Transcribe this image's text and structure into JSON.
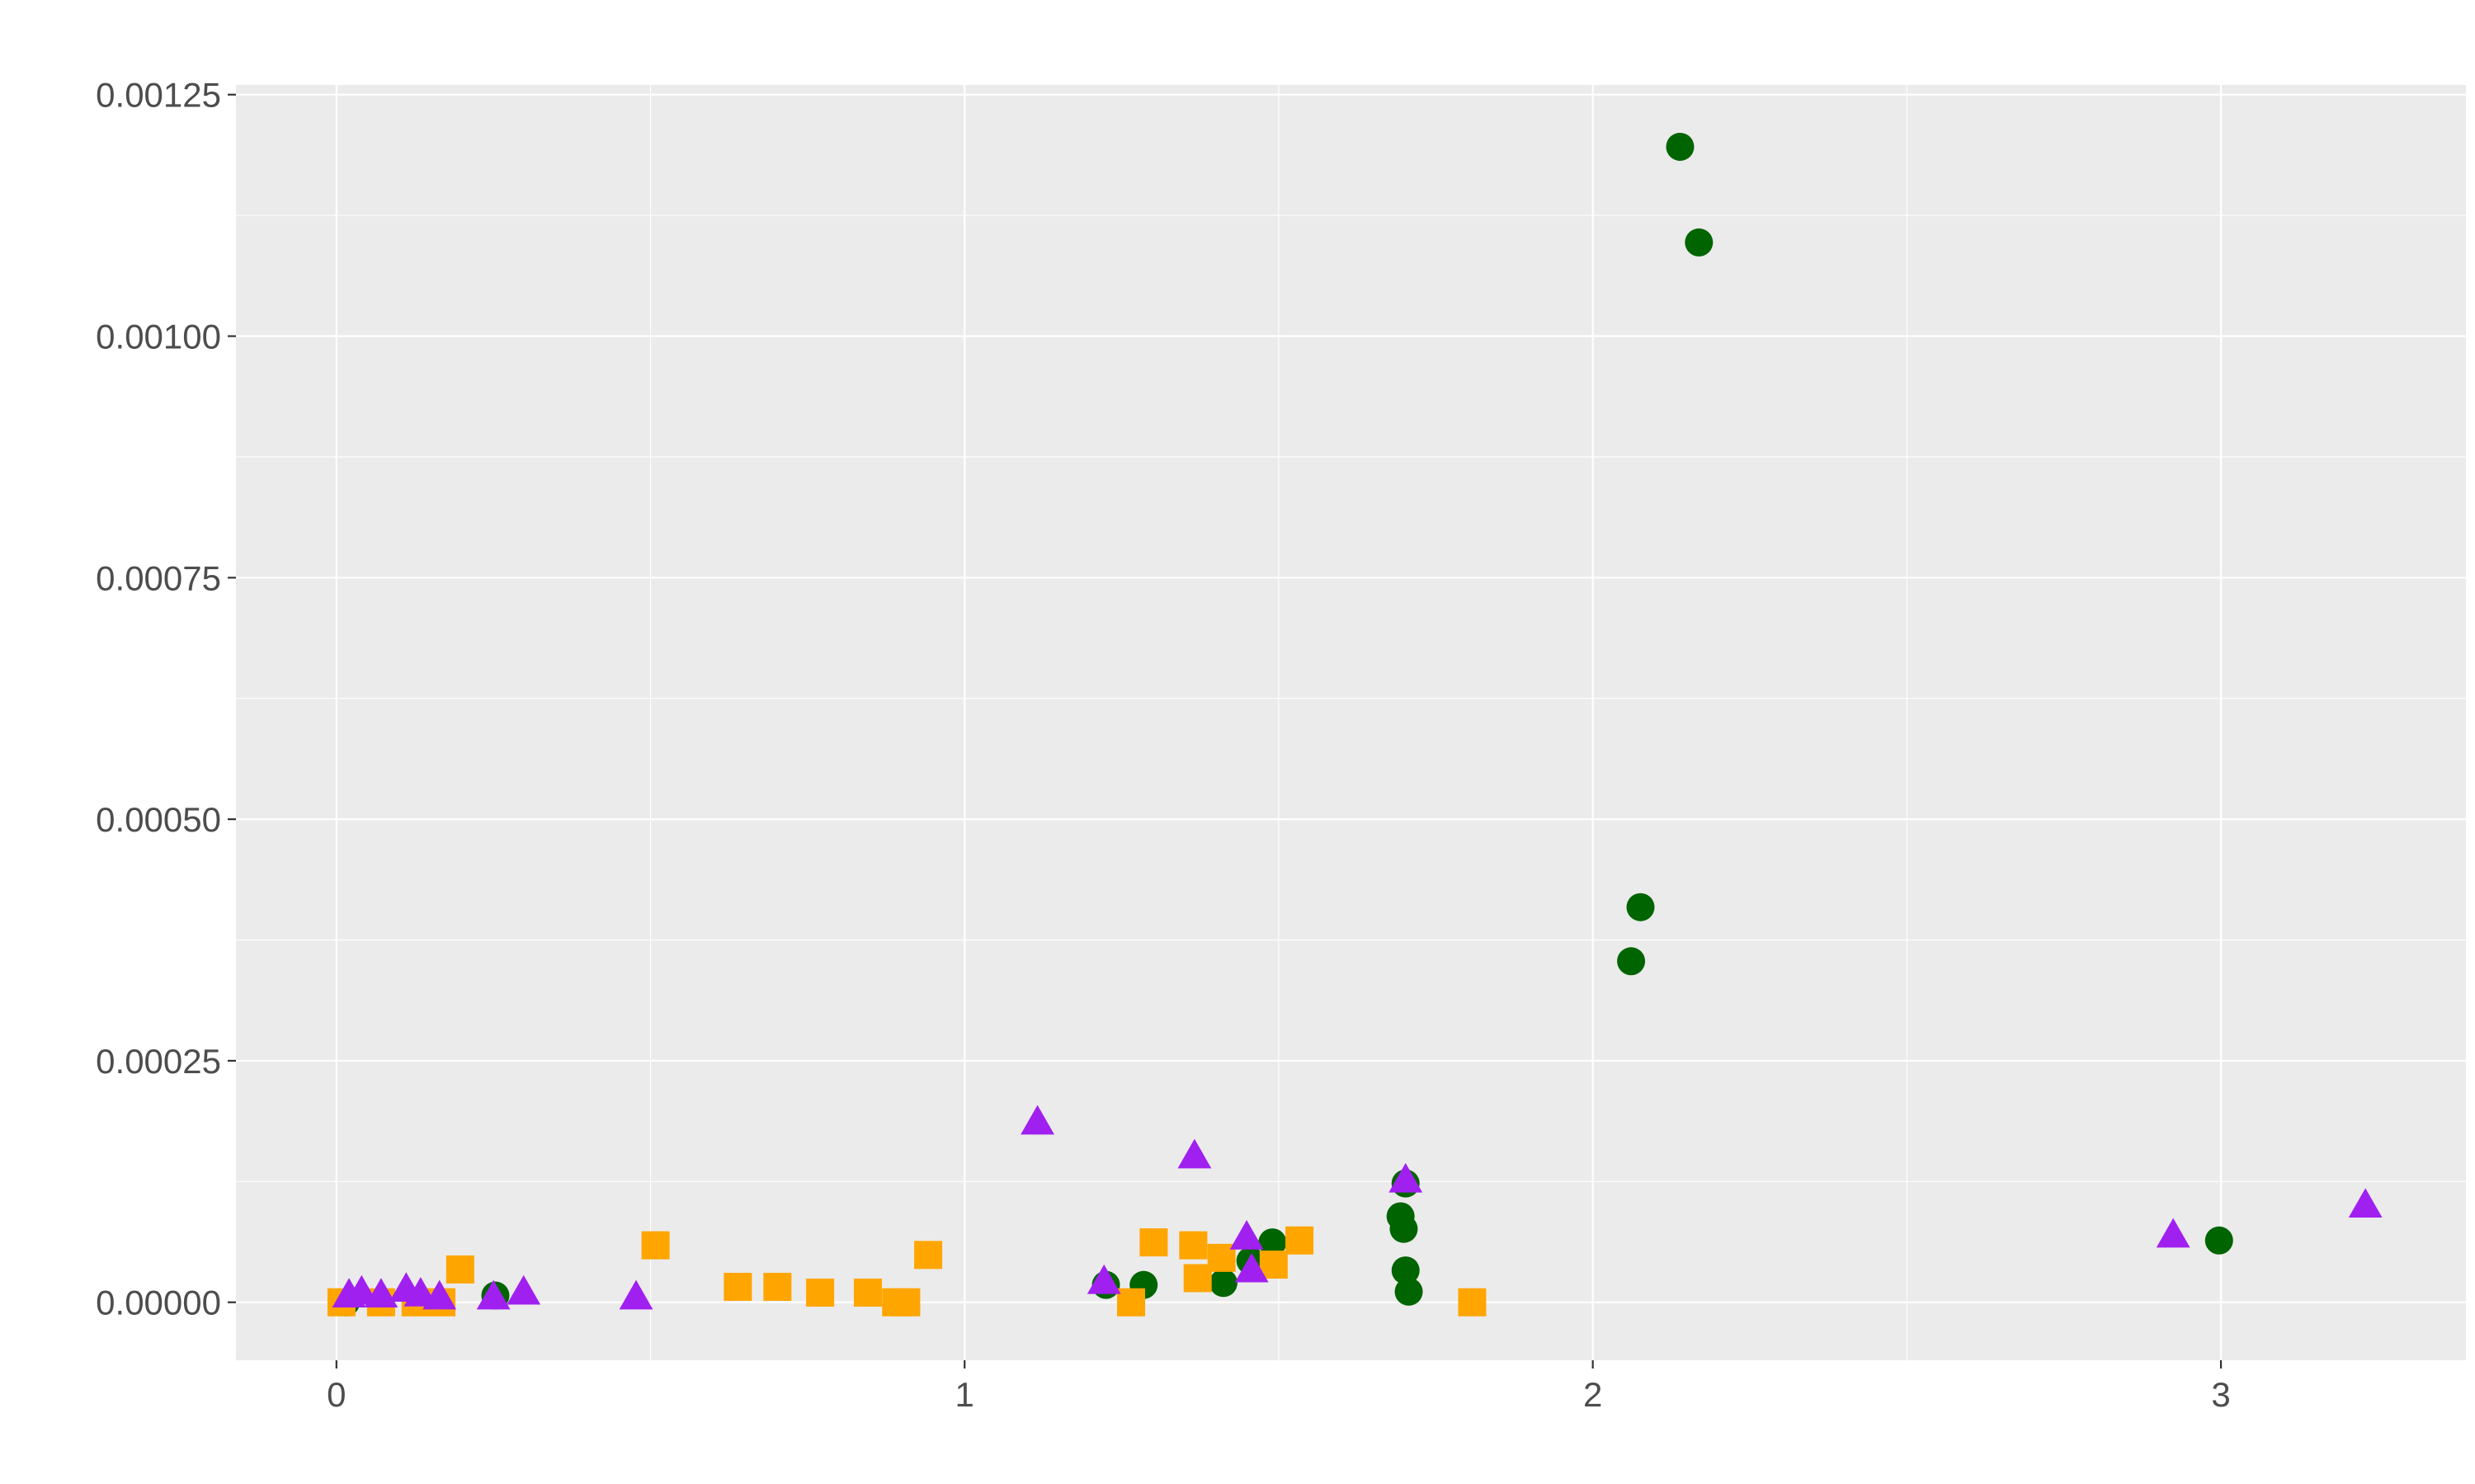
{
  "chart_data": {
    "type": "scatter",
    "xlim": [
      -0.16,
      3.39
    ],
    "xticks": [
      0,
      1,
      2,
      3
    ],
    "ylim": [
      -6e-05,
      0.00126
    ],
    "yticks": [
      {
        "value": 0,
        "label": "0.00000"
      },
      0.00025,
      {
        "value": 0.0005,
        "label": "0.00050"
      },
      {
        "value": 0.00075,
        "label": "0.00075"
      },
      {
        "value": 0.001,
        "label": "0.00100"
      },
      {
        "value": 0.00125,
        "label": "0.00125"
      }
    ],
    "grid": true,
    "series": [
      {
        "color": "#006400",
        "shape": "circle",
        "x": [
          2.139,
          2.169,
          2.076,
          2.061,
          2.997,
          1.702,
          1.694,
          1.699,
          1.702,
          1.707,
          1.49,
          1.455,
          1.412,
          1.285,
          1.225,
          0.253,
          0.015
        ],
        "values": [
          0.001196,
          0.001097,
          0.000409,
          0.000353,
          6.4e-05,
          0.000123,
          8.9e-05,
          7.6e-05,
          3.3e-05,
          1.1e-05,
          6.2e-05,
          4.3e-05,
          2e-05,
          1.8e-05,
          1.8e-05,
          7e-06,
          0
        ]
      },
      {
        "color": "#FFA500",
        "shape": "square",
        "x": [
          0.197,
          0.508,
          0.639,
          0.702,
          0.77,
          0.846,
          0.891,
          0.907,
          0.942,
          1.265,
          1.301,
          1.364,
          1.371,
          1.409,
          1.492,
          1.533,
          1.808,
          0.008,
          0.071,
          0.126,
          0.167
        ],
        "values": [
          3.4e-05,
          5.9e-05,
          1.6e-05,
          1.6e-05,
          1e-05,
          1e-05,
          0,
          0,
          4.9e-05,
          0,
          6.2e-05,
          5.9e-05,
          2.5e-05,
          4.6e-05,
          3.9e-05,
          6.4e-05,
          0,
          0,
          0,
          0,
          0
        ]
      },
      {
        "color": "#A020F0",
        "shape": "triangle",
        "x": [
          1.116,
          1.366,
          1.702,
          1.449,
          1.457,
          1.222,
          2.924,
          3.23,
          0.477,
          0.298,
          0.25,
          0.02,
          0.04,
          0.071,
          0.111,
          0.134,
          0.164
        ],
        "values": [
          0.000186,
          0.000151,
          0.000126,
          6.7e-05,
          3.3e-05,
          2.1e-05,
          6.9e-05,
          0.0001,
          5e-06,
          1e-05,
          5e-06,
          7e-06,
          1e-05,
          7e-06,
          1.3e-05,
          8e-06,
          5e-06
        ]
      }
    ]
  }
}
